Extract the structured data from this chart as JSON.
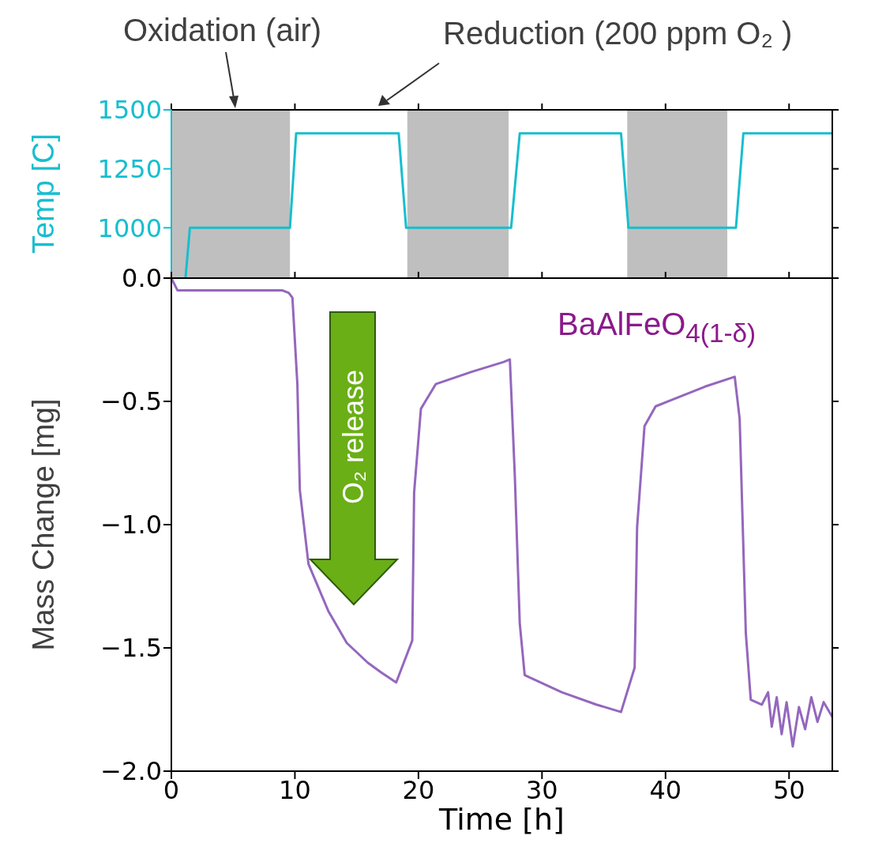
{
  "chart_data": [
    {
      "type": "line",
      "ylabel": "Temp [C]",
      "annotations": [
        "Oxidation (air)",
        "Reduction (200 ppm O₂ )"
      ],
      "series": [
        {
          "color": "#17becf",
          "x": [
            1.15,
            1.5,
            9.6,
            10.1,
            18.4,
            19.0,
            27.5,
            28.2,
            36.4,
            37.0,
            45.7,
            46.3,
            53.5
          ],
          "values": [
            790,
            1000,
            1000,
            1400,
            1400,
            1000,
            1000,
            1400,
            1400,
            1000,
            1000,
            1400,
            1400
          ]
        }
      ],
      "xlim": [
        0,
        53.5
      ],
      "xticks": [
        0,
        10,
        20,
        30,
        40,
        50
      ],
      "ylim": [
        790,
        1500
      ],
      "yticks": [
        1000,
        1250,
        1500
      ],
      "tick_labels": "y",
      "bands": [
        {
          "axis": "x",
          "from": 0,
          "to": 9.6,
          "color": "#bfbfbf"
        },
        {
          "axis": "x",
          "from": 19.1,
          "to": 27.3,
          "color": "#bfbfbf"
        },
        {
          "axis": "x",
          "from": 36.9,
          "to": 45.0,
          "color": "#bfbfbf"
        }
      ]
    },
    {
      "type": "line",
      "xlabel": "Time [h]",
      "ylabel": "Mass Change [mg]",
      "annotations": [
        "O₂ release",
        "BaAlFeO$_{4(1-δ)}$"
      ],
      "series": [
        {
          "color": "#9467bd",
          "x": [
            0,
            0.5,
            3,
            6,
            9,
            9.5,
            9.8,
            10.2,
            10.4,
            11.1,
            12.7,
            14.2,
            15.9,
            17,
            18.2,
            19.5,
            19.65,
            20.2,
            21.4,
            24.3,
            26.9,
            27.4,
            27.8,
            28.2,
            28.6,
            29.0,
            31.6,
            34.4,
            36.4,
            37.5,
            37.7,
            38.3,
            39.2,
            43.2,
            45.6,
            46.0,
            46.5,
            46.9,
            47.8,
            48.3,
            48.6,
            49.0,
            49.4,
            49.8,
            50.3,
            50.8,
            51.3,
            51.8,
            52.3,
            52.8,
            53.5
          ],
          "values": [
            0,
            -0.05,
            -0.05,
            -0.05,
            -0.05,
            -0.06,
            -0.08,
            -0.43,
            -0.86,
            -1.16,
            -1.35,
            -1.48,
            -1.56,
            -1.6,
            -1.64,
            -1.47,
            -0.87,
            -0.53,
            -0.43,
            -0.38,
            -0.34,
            -0.33,
            -0.8,
            -1.4,
            -1.61,
            -1.62,
            -1.68,
            -1.73,
            -1.76,
            -1.58,
            -1.01,
            -0.6,
            -0.52,
            -0.44,
            -0.4,
            -0.57,
            -1.44,
            -1.71,
            -1.73,
            -1.68,
            -1.82,
            -1.7,
            -1.85,
            -1.72,
            -1.9,
            -1.74,
            -1.83,
            -1.7,
            -1.8,
            -1.72,
            -1.78
          ]
        }
      ],
      "xlim": [
        0,
        53.5
      ],
      "xticks": [
        0,
        10,
        20,
        30,
        40,
        50
      ],
      "ylim": [
        -2,
        0
      ],
      "yticks": [
        {
          "value": -2,
          "label": "−2.0"
        },
        {
          "value": -1.5,
          "label": "−1.5"
        },
        {
          "value": -1,
          "label": "−1.0"
        },
        {
          "value": -0.5,
          "label": "−0.5"
        },
        {
          "value": 0,
          "label": "0.0"
        }
      ]
    }
  ]
}
